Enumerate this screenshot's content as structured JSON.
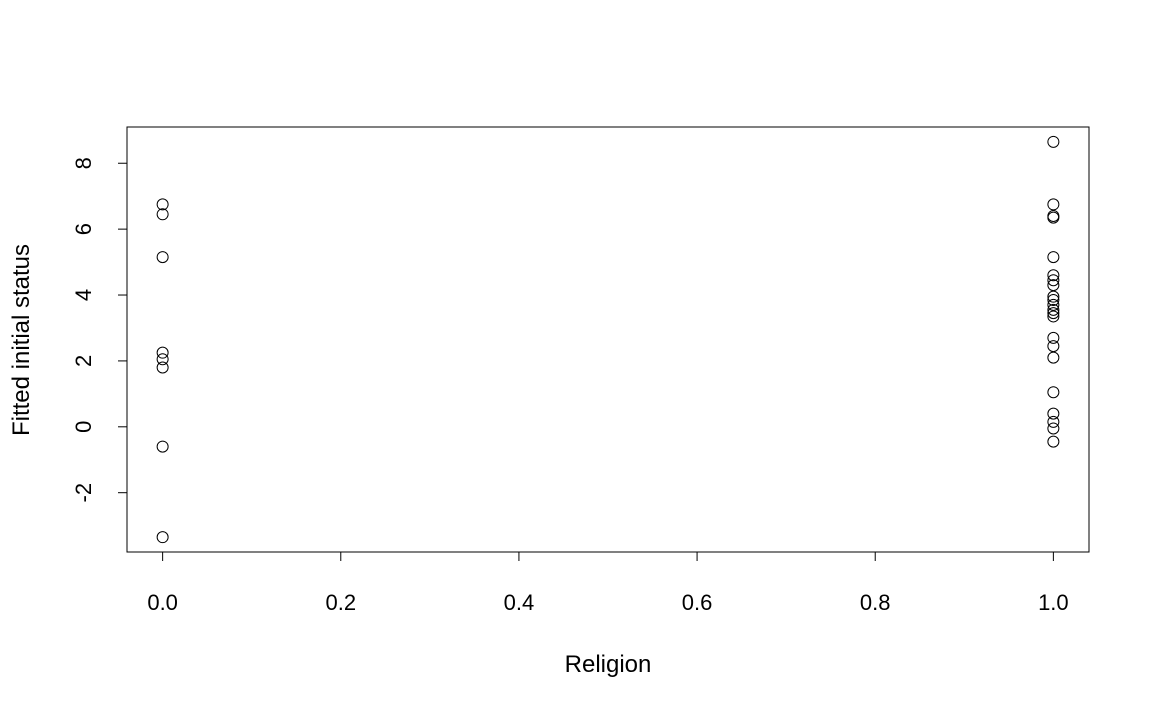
{
  "chart_data": {
    "type": "scatter",
    "title": "",
    "xlabel": "Religion",
    "ylabel": "Fitted initial status",
    "xlim": [
      -0.04,
      1.04
    ],
    "ylim": [
      -3.8,
      9.1
    ],
    "xticks": [
      0.0,
      0.2,
      0.4,
      0.6,
      0.8,
      1.0
    ],
    "xtick_labels": [
      "0.0",
      "0.2",
      "0.4",
      "0.6",
      "0.8",
      "1.0"
    ],
    "yticks": [
      -2,
      0,
      2,
      4,
      6,
      8
    ],
    "ytick_labels": [
      "-2",
      "0",
      "2",
      "4",
      "6",
      "8"
    ],
    "grid": false,
    "legend": "none",
    "marker": "open-circle",
    "colors": {
      "marker": "#000000",
      "axes": "#000000",
      "background": "#ffffff"
    },
    "points": [
      {
        "x": 0,
        "y": 6.75
      },
      {
        "x": 0,
        "y": 6.45
      },
      {
        "x": 0,
        "y": 5.15
      },
      {
        "x": 0,
        "y": 2.25
      },
      {
        "x": 0,
        "y": 2.05
      },
      {
        "x": 0,
        "y": 1.8
      },
      {
        "x": 0,
        "y": -0.6
      },
      {
        "x": 0,
        "y": -3.35
      },
      {
        "x": 1,
        "y": 8.65
      },
      {
        "x": 1,
        "y": 6.75
      },
      {
        "x": 1,
        "y": 6.4
      },
      {
        "x": 1,
        "y": 6.35
      },
      {
        "x": 1,
        "y": 5.15
      },
      {
        "x": 1,
        "y": 4.6
      },
      {
        "x": 1,
        "y": 4.45
      },
      {
        "x": 1,
        "y": 4.3
      },
      {
        "x": 1,
        "y": 3.95
      },
      {
        "x": 1,
        "y": 3.85
      },
      {
        "x": 1,
        "y": 3.7
      },
      {
        "x": 1,
        "y": 3.55
      },
      {
        "x": 1,
        "y": 3.45
      },
      {
        "x": 1,
        "y": 3.35
      },
      {
        "x": 1,
        "y": 2.7
      },
      {
        "x": 1,
        "y": 2.45
      },
      {
        "x": 1,
        "y": 2.1
      },
      {
        "x": 1,
        "y": 1.05
      },
      {
        "x": 1,
        "y": 0.4
      },
      {
        "x": 1,
        "y": 0.15
      },
      {
        "x": 1,
        "y": -0.05
      },
      {
        "x": 1,
        "y": -0.45
      }
    ]
  }
}
